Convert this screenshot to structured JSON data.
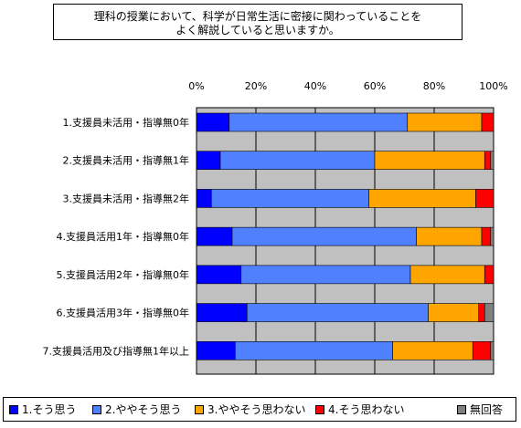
{
  "chart_data": {
    "type": "bar",
    "orientation": "horizontal",
    "stacked": true,
    "title_lines": [
      "理科の授業において、科学が日常生活に密接に関わっていることを",
      "よく解説していると思いますか。"
    ],
    "x_tick_labels": [
      "0%",
      "20%",
      "40%",
      "60%",
      "80%",
      "100%"
    ],
    "xlim": [
      0,
      100
    ],
    "grid": true,
    "legend_position": "bottom",
    "categories": [
      "1.支援員未活用・指導無0年",
      "2.支援員未活用・指導無1年",
      "3.支援員未活用・指導無2年",
      "4.支援員活用1年・指導無0年",
      "5.支援員活用2年・指導無0年",
      "6.支援員活用3年・指導無0年",
      "7.支援員活用及び指導無1年以上"
    ],
    "series": [
      {
        "name": "1.そう思う",
        "color": "#0000ff",
        "values": [
          11,
          8,
          5,
          12,
          15,
          17,
          13
        ]
      },
      {
        "name": "2.ややそう思う",
        "color": "#4f81ff",
        "values": [
          60,
          52,
          53,
          62,
          57,
          61,
          53
        ]
      },
      {
        "name": "3.ややそう思わない",
        "color": "#ffa500",
        "values": [
          25,
          37,
          36,
          22,
          25,
          17,
          27
        ]
      },
      {
        "name": "4.そう思わない",
        "color": "#ff0000",
        "values": [
          4,
          2,
          6,
          3,
          3,
          2,
          6
        ]
      },
      {
        "name": "無回答",
        "color": "#808080",
        "values": [
          0,
          1,
          0,
          1,
          0,
          3,
          1
        ]
      }
    ]
  }
}
